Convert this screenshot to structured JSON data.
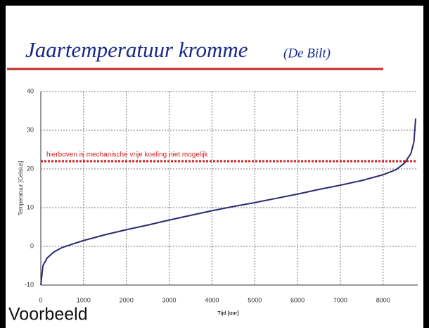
{
  "chart_data": {
    "type": "line",
    "title": "Jaartemperatuur kromme",
    "subtitle": "(De Bilt)",
    "xlabel": "Tijd [uur]",
    "ylabel": "Temperatuur [Celsius]",
    "annotation": "hierboven is mechanische vrije koeling niet mogelijk",
    "threshold": 22,
    "threshold_color": "#cc2222",
    "footer": "Voorbeeld",
    "x": [
      0,
      50,
      150,
      300,
      500,
      800,
      1000,
      1500,
      2000,
      2500,
      3000,
      3500,
      4000,
      4500,
      5000,
      5500,
      6000,
      6500,
      7000,
      7500,
      8000,
      8300,
      8500,
      8650,
      8720,
      8760
    ],
    "series": [
      {
        "name": "Temperatuur",
        "color": "#2b2b6e",
        "values": [
          -10,
          -5,
          -3,
          -1.5,
          -0.3,
          0.8,
          1.5,
          3,
          4.3,
          5.5,
          6.8,
          8,
          9.2,
          10.3,
          11.3,
          12.4,
          13.5,
          14.7,
          15.8,
          17,
          18.5,
          19.8,
          21.5,
          24,
          27,
          33
        ]
      }
    ],
    "xlim": [
      0,
      8760
    ],
    "ylim": [
      -10,
      40
    ],
    "xticks": [
      0,
      1000,
      2000,
      3000,
      4000,
      5000,
      6000,
      7000,
      8000
    ],
    "yticks": [
      -10,
      0,
      10,
      20,
      30,
      40
    ],
    "grid": true
  }
}
